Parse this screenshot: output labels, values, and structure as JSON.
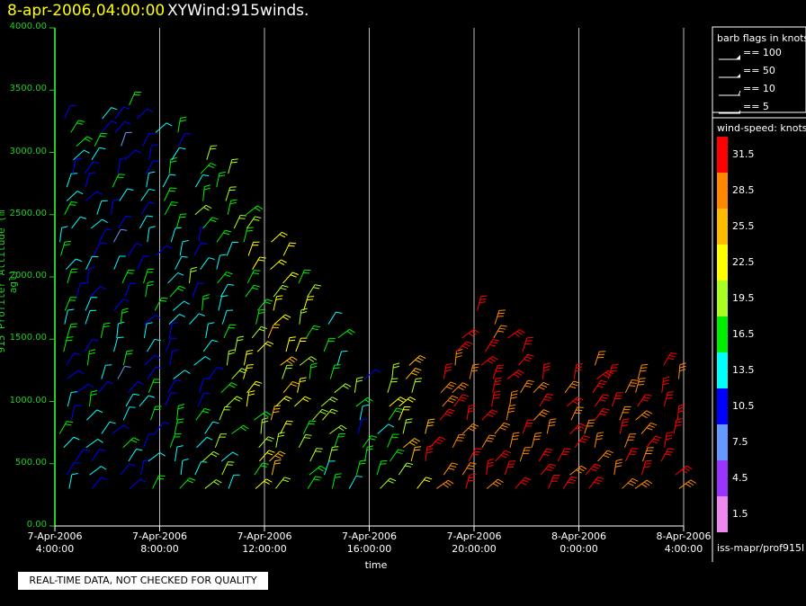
{
  "header": {
    "date": "8-apr-2006,04:00:00",
    "name": "XYWind:915winds."
  },
  "colors": {
    "axis": "#22cc22",
    "grid": "#bbbbbb",
    "background": "#000000"
  },
  "chart_data": {
    "type": "wind-barb",
    "ylabel": "915 Profiler Altitude (m agl)",
    "xlabel": "time",
    "ylim": [
      0,
      4000
    ],
    "yticks": [
      "0.00",
      "500.00",
      "1000.00",
      "1500.00",
      "2000.00",
      "2500.00",
      "3000.00",
      "3500.00",
      "4000.00"
    ],
    "xticks": [
      {
        "hour": 0,
        "date": "7-Apr-2006",
        "time": "4:00:00"
      },
      {
        "hour": 4,
        "date": "7-Apr-2006",
        "time": "8:00:00"
      },
      {
        "hour": 8,
        "date": "7-Apr-2006",
        "time": "12:00:00"
      },
      {
        "hour": 12,
        "date": "7-Apr-2006",
        "time": "16:00:00"
      },
      {
        "hour": 16,
        "date": "7-Apr-2006",
        "time": "20:00:00"
      },
      {
        "hour": 20,
        "date": "8-Apr-2006",
        "time": "0:00:00"
      },
      {
        "hour": 24,
        "date": "8-Apr-2006",
        "time": "4:00:00"
      }
    ],
    "grid": true,
    "barb_flags": {
      "title": "barb flags in knots",
      "items": [
        "== 100",
        "== 50",
        "== 10",
        "== 5"
      ]
    },
    "wind_speed_scale": {
      "title": "wind-speed: knots",
      "bins": [
        {
          "label": "31.5",
          "color": "#ff0000"
        },
        {
          "label": "28.5",
          "color": "#ff8800"
        },
        {
          "label": "25.5",
          "color": "#ffbb00"
        },
        {
          "label": "22.5",
          "color": "#ffff00"
        },
        {
          "label": "19.5",
          "color": "#aaff22"
        },
        {
          "label": "16.5",
          "color": "#00ee00"
        },
        {
          "label": "13.5",
          "color": "#00ffff"
        },
        {
          "label": "10.5",
          "color": "#0000ff"
        },
        {
          "label": "7.5",
          "color": "#6699ff"
        },
        {
          "label": "4.5",
          "color": "#9933ff"
        },
        {
          "label": "1.5",
          "color": "#ee88ee"
        }
      ]
    },
    "profiles": [
      {
        "hour": 0.5,
        "top": 3300,
        "speed": 14
      },
      {
        "hour": 1.5,
        "top": 3300,
        "speed": 13
      },
      {
        "hour": 2.5,
        "top": 3400,
        "speed": 12
      },
      {
        "hour": 3.5,
        "top": 3300,
        "speed": 13
      },
      {
        "hour": 4.5,
        "top": 3200,
        "speed": 14
      },
      {
        "hour": 5.5,
        "top": 3000,
        "speed": 15
      },
      {
        "hour": 6.5,
        "top": 2900,
        "speed": 17
      },
      {
        "hour": 7.5,
        "top": 2500,
        "speed": 19
      },
      {
        "hour": 8.5,
        "top": 2300,
        "speed": 22
      },
      {
        "hour": 9.5,
        "top": 2000,
        "speed": 19
      },
      {
        "hour": 10.5,
        "top": 1700,
        "speed": 17
      },
      {
        "hour": 11.5,
        "top": 1200,
        "speed": 15
      },
      {
        "hour": 12.5,
        "top": 1200,
        "speed": 18
      },
      {
        "hour": 13.5,
        "top": 1300,
        "speed": 22
      },
      {
        "hour": 14.5,
        "top": 1200,
        "speed": 29
      },
      {
        "hour": 15.5,
        "top": 1600,
        "speed": 31
      },
      {
        "hour": 16.5,
        "top": 1800,
        "speed": 31
      },
      {
        "hour": 17.5,
        "top": 1600,
        "speed": 31
      },
      {
        "hour": 18.5,
        "top": 1200,
        "speed": 31
      },
      {
        "hour": 19.5,
        "top": 1200,
        "speed": 31
      },
      {
        "hour": 20.5,
        "top": 1300,
        "speed": 31
      },
      {
        "hour": 21.5,
        "top": 1200,
        "speed": 31
      },
      {
        "hour": 22.5,
        "top": 1200,
        "speed": 31
      },
      {
        "hour": 23.5,
        "top": 1300,
        "speed": 30
      }
    ]
  },
  "footer": {
    "quality_note": "REAL-TIME DATA, NOT CHECKED FOR QUALITY",
    "source": "iss-mapr/prof915l"
  }
}
